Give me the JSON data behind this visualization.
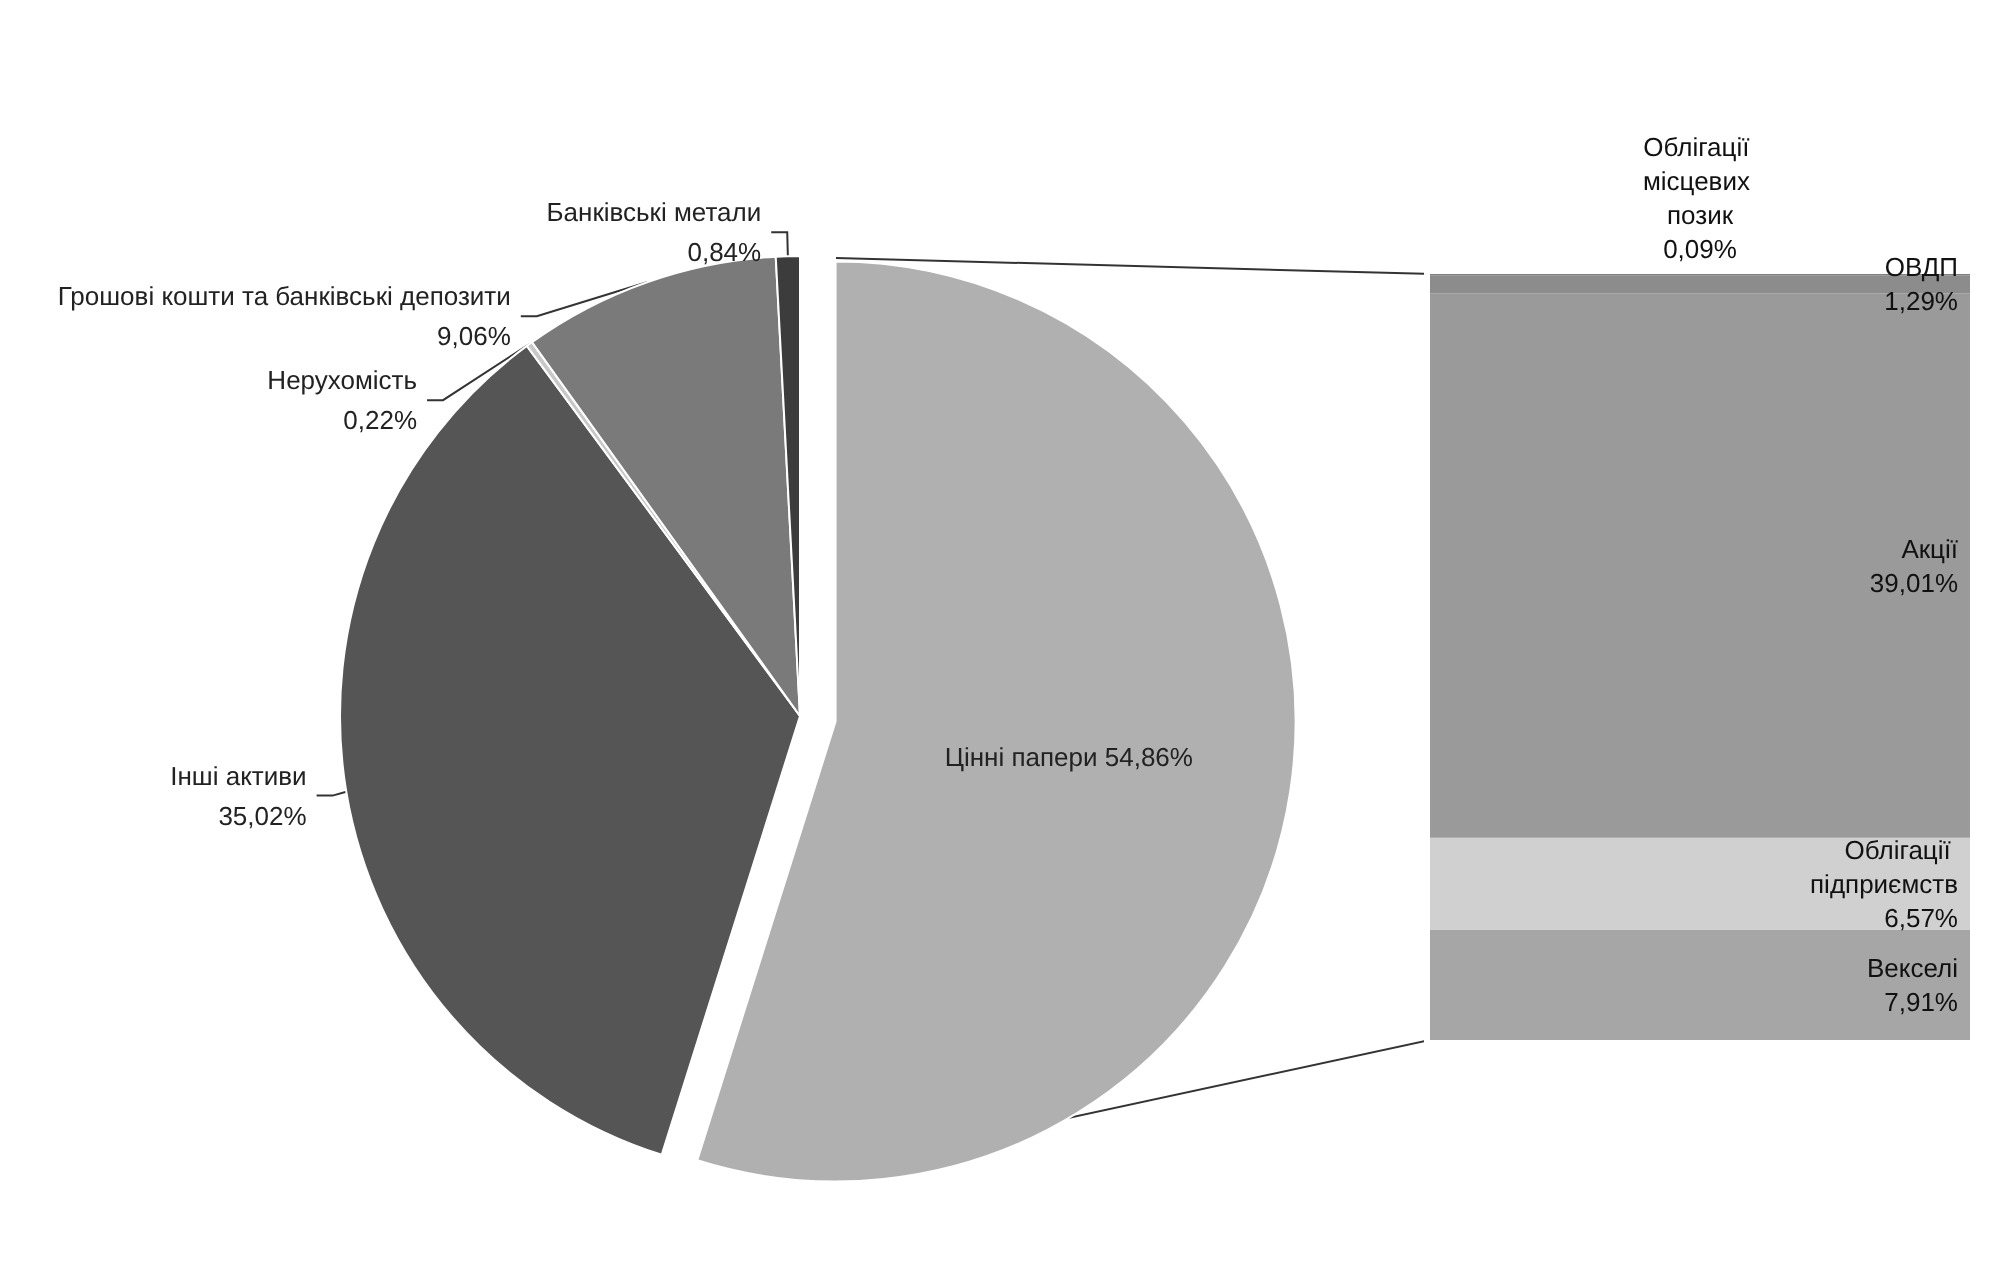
{
  "chart_data": [
    {
      "type": "pie",
      "categories": [
        "Цінні папери",
        "Інші активи",
        "Нерухомість",
        "Грошові кошти та банківські депозити",
        "Банківські метали"
      ],
      "values": [
        54.86,
        35.02,
        0.22,
        9.06,
        0.84
      ],
      "value_labels": [
        "54,86%",
        "35,02%",
        "0,22%",
        "9,06%",
        "0,84%"
      ],
      "colors": [
        "#b0b0b0",
        "#555555",
        "#c8c8c8",
        "#7a7a7a",
        "#3c3c3c"
      ]
    },
    {
      "type": "bar",
      "stacked": true,
      "categories": [
        null
      ],
      "series": [
        {
          "name": "Векселі",
          "color": "#a6a6a6",
          "values": [
            7.91
          ],
          "value_labels": [
            "7,91%"
          ]
        },
        {
          "name": "Облігації підприємств",
          "color": "#d0d0d0",
          "values": [
            6.57
          ],
          "value_labels": [
            "6,57%"
          ]
        },
        {
          "name": "Акції",
          "color": "#9a9a9a",
          "values": [
            39.01
          ],
          "value_labels": [
            "39,01%"
          ]
        },
        {
          "name": "ОВДП",
          "color": "#8c8c8c",
          "values": [
            1.29
          ],
          "value_labels": [
            "1,29%"
          ]
        },
        {
          "name": "Облігації місцевих позик",
          "color": "#7f7f7f",
          "values": [
            0.09
          ],
          "value_labels": [
            "0,09%"
          ]
        }
      ]
    }
  ]
}
